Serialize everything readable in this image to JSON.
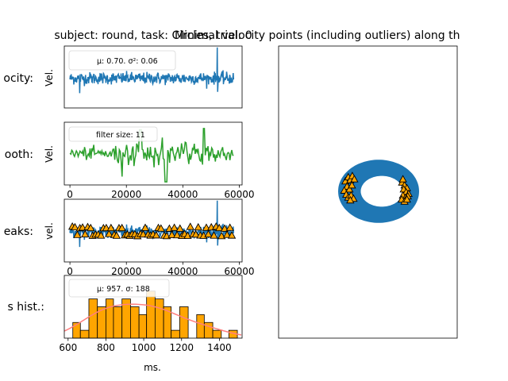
{
  "titles": {
    "left": "subject: round, task: Circles, trial: 0",
    "right": "Minimal velocity points (including outliers) along th"
  },
  "row_labels": [
    "ocity:",
    "ooth:",
    "eaks:",
    "s hist.:"
  ],
  "ylabels": [
    "Vel.",
    "Vel.",
    "vel."
  ],
  "xlabel_hist": "ms.",
  "legends": {
    "velocity": "μ: 0.70.  σ²: 0.06",
    "smooth": "filter size: 11",
    "hist": "μ: 957.  σ: 188"
  },
  "colors": {
    "blue": "#1f77b4",
    "green": "#2ca02c",
    "orange": "#ffa500",
    "kde": "#ff7f7f",
    "edge": "#000000"
  },
  "chart_data": [
    {
      "type": "line",
      "name_panel": "velocity",
      "xlim": [
        -2000,
        61000
      ],
      "ylim": [
        -0.4,
        1.9
      ],
      "x_ticks": [],
      "series": [
        {
          "color": "#1f77b4",
          "mean": 0.7,
          "std": 0.06
        }
      ]
    },
    {
      "type": "line",
      "name_panel": "smooth",
      "xlim": [
        -2000,
        61000
      ],
      "x_ticks": [
        "0",
        "20000",
        "40000",
        "60000"
      ],
      "series": [
        {
          "color": "#2ca02c",
          "filter_size": 11
        }
      ]
    },
    {
      "type": "scatter",
      "name_panel": "peaks",
      "xlim": [
        -2000,
        61000
      ],
      "x_ticks": [
        "0",
        "20000",
        "40000",
        "60000"
      ],
      "series": [
        {
          "color": "#1f77b4"
        },
        {
          "color": "#ffa500",
          "marker": "triangle"
        }
      ]
    },
    {
      "type": "bar",
      "name_panel": "hist",
      "xlim": [
        580,
        1520
      ],
      "x_ticks": [
        "600",
        "800",
        "1000",
        "1200",
        "1400"
      ],
      "xlabel": "ms.",
      "bin_edges": [
        625,
        665,
        710,
        755,
        800,
        840,
        885,
        930,
        975,
        1015,
        1060,
        1105,
        1145,
        1190,
        1235,
        1280,
        1320,
        1365,
        1410,
        1450,
        1495
      ],
      "counts": [
        2,
        1,
        5,
        4,
        5,
        4,
        5,
        4,
        3,
        6,
        5,
        4,
        1,
        4,
        0,
        3,
        2,
        1,
        0,
        1
      ],
      "mean": 957,
      "std": 188
    },
    {
      "type": "scatter",
      "name_panel": "trajectory",
      "ring": {
        "cx": 0,
        "cy": 0,
        "rx_outer": 1.0,
        "ry_outer": 0.78,
        "rx_inner": 0.52,
        "ry_inner": 0.38
      },
      "peaks": [
        [
          -0.82,
          0.25
        ],
        [
          -0.75,
          0.35
        ],
        [
          -0.7,
          0.28
        ],
        [
          -0.65,
          0.38
        ],
        [
          -0.6,
          0.3
        ],
        [
          -0.78,
          0.12
        ],
        [
          -0.72,
          0.05
        ],
        [
          -0.85,
          0.02
        ],
        [
          -0.8,
          -0.08
        ],
        [
          -0.75,
          -0.15
        ],
        [
          -0.68,
          -0.1
        ],
        [
          -0.62,
          -0.18
        ],
        [
          -0.7,
          -0.22
        ],
        [
          -0.66,
          0.15
        ],
        [
          0.58,
          0.22
        ],
        [
          0.64,
          0.15
        ],
        [
          0.7,
          0.08
        ],
        [
          0.62,
          0.05
        ],
        [
          0.68,
          -0.02
        ],
        [
          0.74,
          -0.06
        ],
        [
          0.6,
          -0.1
        ],
        [
          0.66,
          -0.16
        ],
        [
          0.72,
          -0.12
        ],
        [
          0.57,
          -0.2
        ],
        [
          0.64,
          -0.25
        ],
        [
          0.7,
          -0.2
        ],
        [
          0.6,
          0.3
        ]
      ]
    }
  ]
}
